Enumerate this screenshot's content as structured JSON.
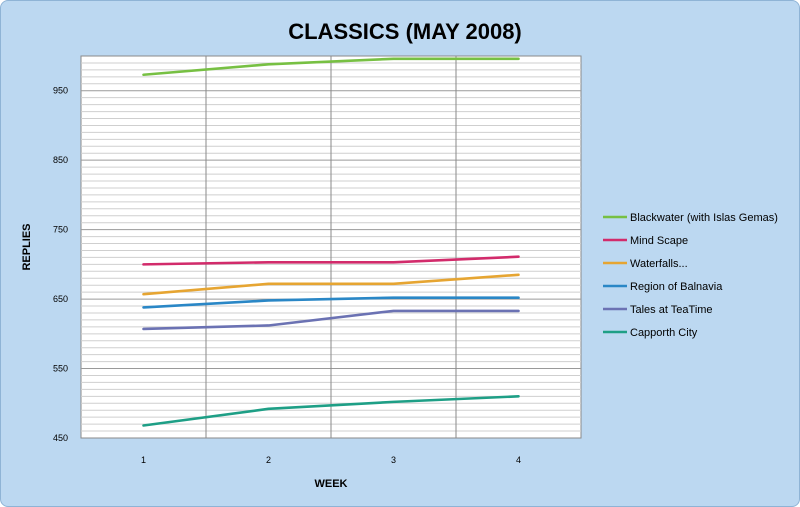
{
  "chart_data": {
    "type": "line",
    "title": "CLASSICS (MAY 2008)",
    "xlabel": "WEEK",
    "ylabel": "REPLIES",
    "categories": [
      "1",
      "2",
      "3",
      "4"
    ],
    "ylim": [
      450,
      1000
    ],
    "yticks": [
      450,
      550,
      650,
      750,
      850,
      950
    ],
    "grid": true,
    "legend_position": "right",
    "series": [
      {
        "name": "Blackwater (with Islas Gemas)",
        "color": "#77c043",
        "values": [
          973,
          988,
          996,
          996
        ]
      },
      {
        "name": "Mind Scape",
        "color": "#d22b6b",
        "values": [
          700,
          703,
          703,
          711
        ]
      },
      {
        "name": "Waterfalls...",
        "color": "#e6a532",
        "values": [
          657,
          672,
          672,
          685
        ]
      },
      {
        "name": "Region of Balnavia",
        "color": "#2a87c6",
        "values": [
          638,
          648,
          652,
          652
        ]
      },
      {
        "name": "Tales at TeaTime",
        "color": "#6b72b3",
        "values": [
          607,
          612,
          633,
          633
        ]
      },
      {
        "name": "Capporth City",
        "color": "#1e9f86",
        "values": [
          468,
          492,
          502,
          510
        ]
      }
    ]
  }
}
